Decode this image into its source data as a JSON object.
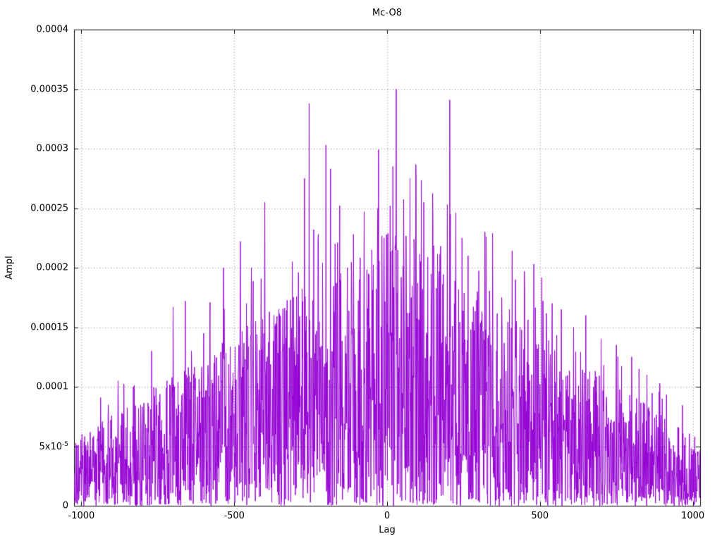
{
  "chart_data": {
    "type": "line",
    "title": "Mc-O8",
    "xlabel": "Lag",
    "ylabel": "Ampl",
    "xlim": [
      -1024,
      1024
    ],
    "ylim": [
      0,
      0.0004
    ],
    "grid": true,
    "legend": "none",
    "line_color": "#9400d3",
    "grid_color": "#8c8c8c",
    "x_ticks": [
      {
        "label": "-1000",
        "value": -1000
      },
      {
        "label": "-500",
        "value": -500
      },
      {
        "label": "0",
        "value": 0
      },
      {
        "label": "500",
        "value": 500
      },
      {
        "label": "1000",
        "value": 1000
      }
    ],
    "y_ticks": [
      {
        "label": "0",
        "value": 0
      },
      {
        "label": "5x10^-5",
        "value": 5e-05
      },
      {
        "label": "0.0001",
        "value": 0.0001
      },
      {
        "label": "0.00015",
        "value": 0.00015
      },
      {
        "label": "0.0002",
        "value": 0.0002
      },
      {
        "label": "0.00025",
        "value": 0.00025
      },
      {
        "label": "0.0003",
        "value": 0.0003
      },
      {
        "label": "0.00035",
        "value": 0.00035
      },
      {
        "label": "0.0004",
        "value": 0.0004
      }
    ],
    "series_description": "Dense noisy amplitude spectrum vs lag; roughly triangular envelope peaking near lag 0, decaying toward both edges",
    "envelope": {
      "edge_max": 5.5e-05,
      "center_max": 0.00023,
      "shape_exponent": 1.0
    },
    "noise": {
      "seed": 1234567,
      "step": 1,
      "value_exponent": 1.35,
      "spike_prob": 0.03
    },
    "notable_peaks": [
      {
        "x": -880,
        "y": 0.000105
      },
      {
        "x": -830,
        "y": 0.0001
      },
      {
        "x": -770,
        "y": 0.00013
      },
      {
        "x": -720,
        "y": 0.000105
      },
      {
        "x": -700,
        "y": 0.000167
      },
      {
        "x": -660,
        "y": 0.000172
      },
      {
        "x": -640,
        "y": 0.00013
      },
      {
        "x": -600,
        "y": 0.000145
      },
      {
        "x": -580,
        "y": 0.00014
      },
      {
        "x": -535,
        "y": 0.0002
      },
      {
        "x": -480,
        "y": 0.000222
      },
      {
        "x": -460,
        "y": 0.00017
      },
      {
        "x": -430,
        "y": 0.000155
      },
      {
        "x": -400,
        "y": 0.000255
      },
      {
        "x": -370,
        "y": 0.00016
      },
      {
        "x": -340,
        "y": 0.000165
      },
      {
        "x": -310,
        "y": 0.000205
      },
      {
        "x": -290,
        "y": 0.000196
      },
      {
        "x": -270,
        "y": 0.000275
      },
      {
        "x": -255,
        "y": 0.000338
      },
      {
        "x": -240,
        "y": 0.000232
      },
      {
        "x": -225,
        "y": 0.000228
      },
      {
        "x": -200,
        "y": 0.000303
      },
      {
        "x": -185,
        "y": 0.000283
      },
      {
        "x": -170,
        "y": 0.00022
      },
      {
        "x": -155,
        "y": 0.000252
      },
      {
        "x": -130,
        "y": 0.0002
      },
      {
        "x": -110,
        "y": 0.000228
      },
      {
        "x": -90,
        "y": 0.00019
      },
      {
        "x": -75,
        "y": 0.000247
      },
      {
        "x": -50,
        "y": 0.000215
      },
      {
        "x": -30,
        "y": 0.00025
      },
      {
        "x": -10,
        "y": 0.000225
      },
      {
        "x": 10,
        "y": 0.000252
      },
      {
        "x": 30,
        "y": 0.00035
      },
      {
        "x": 55,
        "y": 0.000208
      },
      {
        "x": 75,
        "y": 0.000275
      },
      {
        "x": 95,
        "y": 0.000273
      },
      {
        "x": 120,
        "y": 0.000255
      },
      {
        "x": 150,
        "y": 0.000235
      },
      {
        "x": 175,
        "y": 0.000218
      },
      {
        "x": 205,
        "y": 0.000341
      },
      {
        "x": 225,
        "y": 0.000246
      },
      {
        "x": 245,
        "y": 0.000225
      },
      {
        "x": 265,
        "y": 0.00021
      },
      {
        "x": 295,
        "y": 0.00018
      },
      {
        "x": 320,
        "y": 0.00023
      },
      {
        "x": 345,
        "y": 0.000229
      },
      {
        "x": 375,
        "y": 0.000175
      },
      {
        "x": 400,
        "y": 0.000165
      },
      {
        "x": 420,
        "y": 0.00019
      },
      {
        "x": 450,
        "y": 0.00018
      },
      {
        "x": 480,
        "y": 0.000203
      },
      {
        "x": 510,
        "y": 0.000172
      },
      {
        "x": 540,
        "y": 0.00017
      },
      {
        "x": 570,
        "y": 0.000165
      },
      {
        "x": 610,
        "y": 0.00015
      },
      {
        "x": 650,
        "y": 0.00016
      },
      {
        "x": 700,
        "y": 0.00014
      },
      {
        "x": 750,
        "y": 0.000135
      },
      {
        "x": 800,
        "y": 0.000125
      },
      {
        "x": 850,
        "y": 0.00011
      },
      {
        "x": 900,
        "y": 9e-05
      }
    ]
  }
}
